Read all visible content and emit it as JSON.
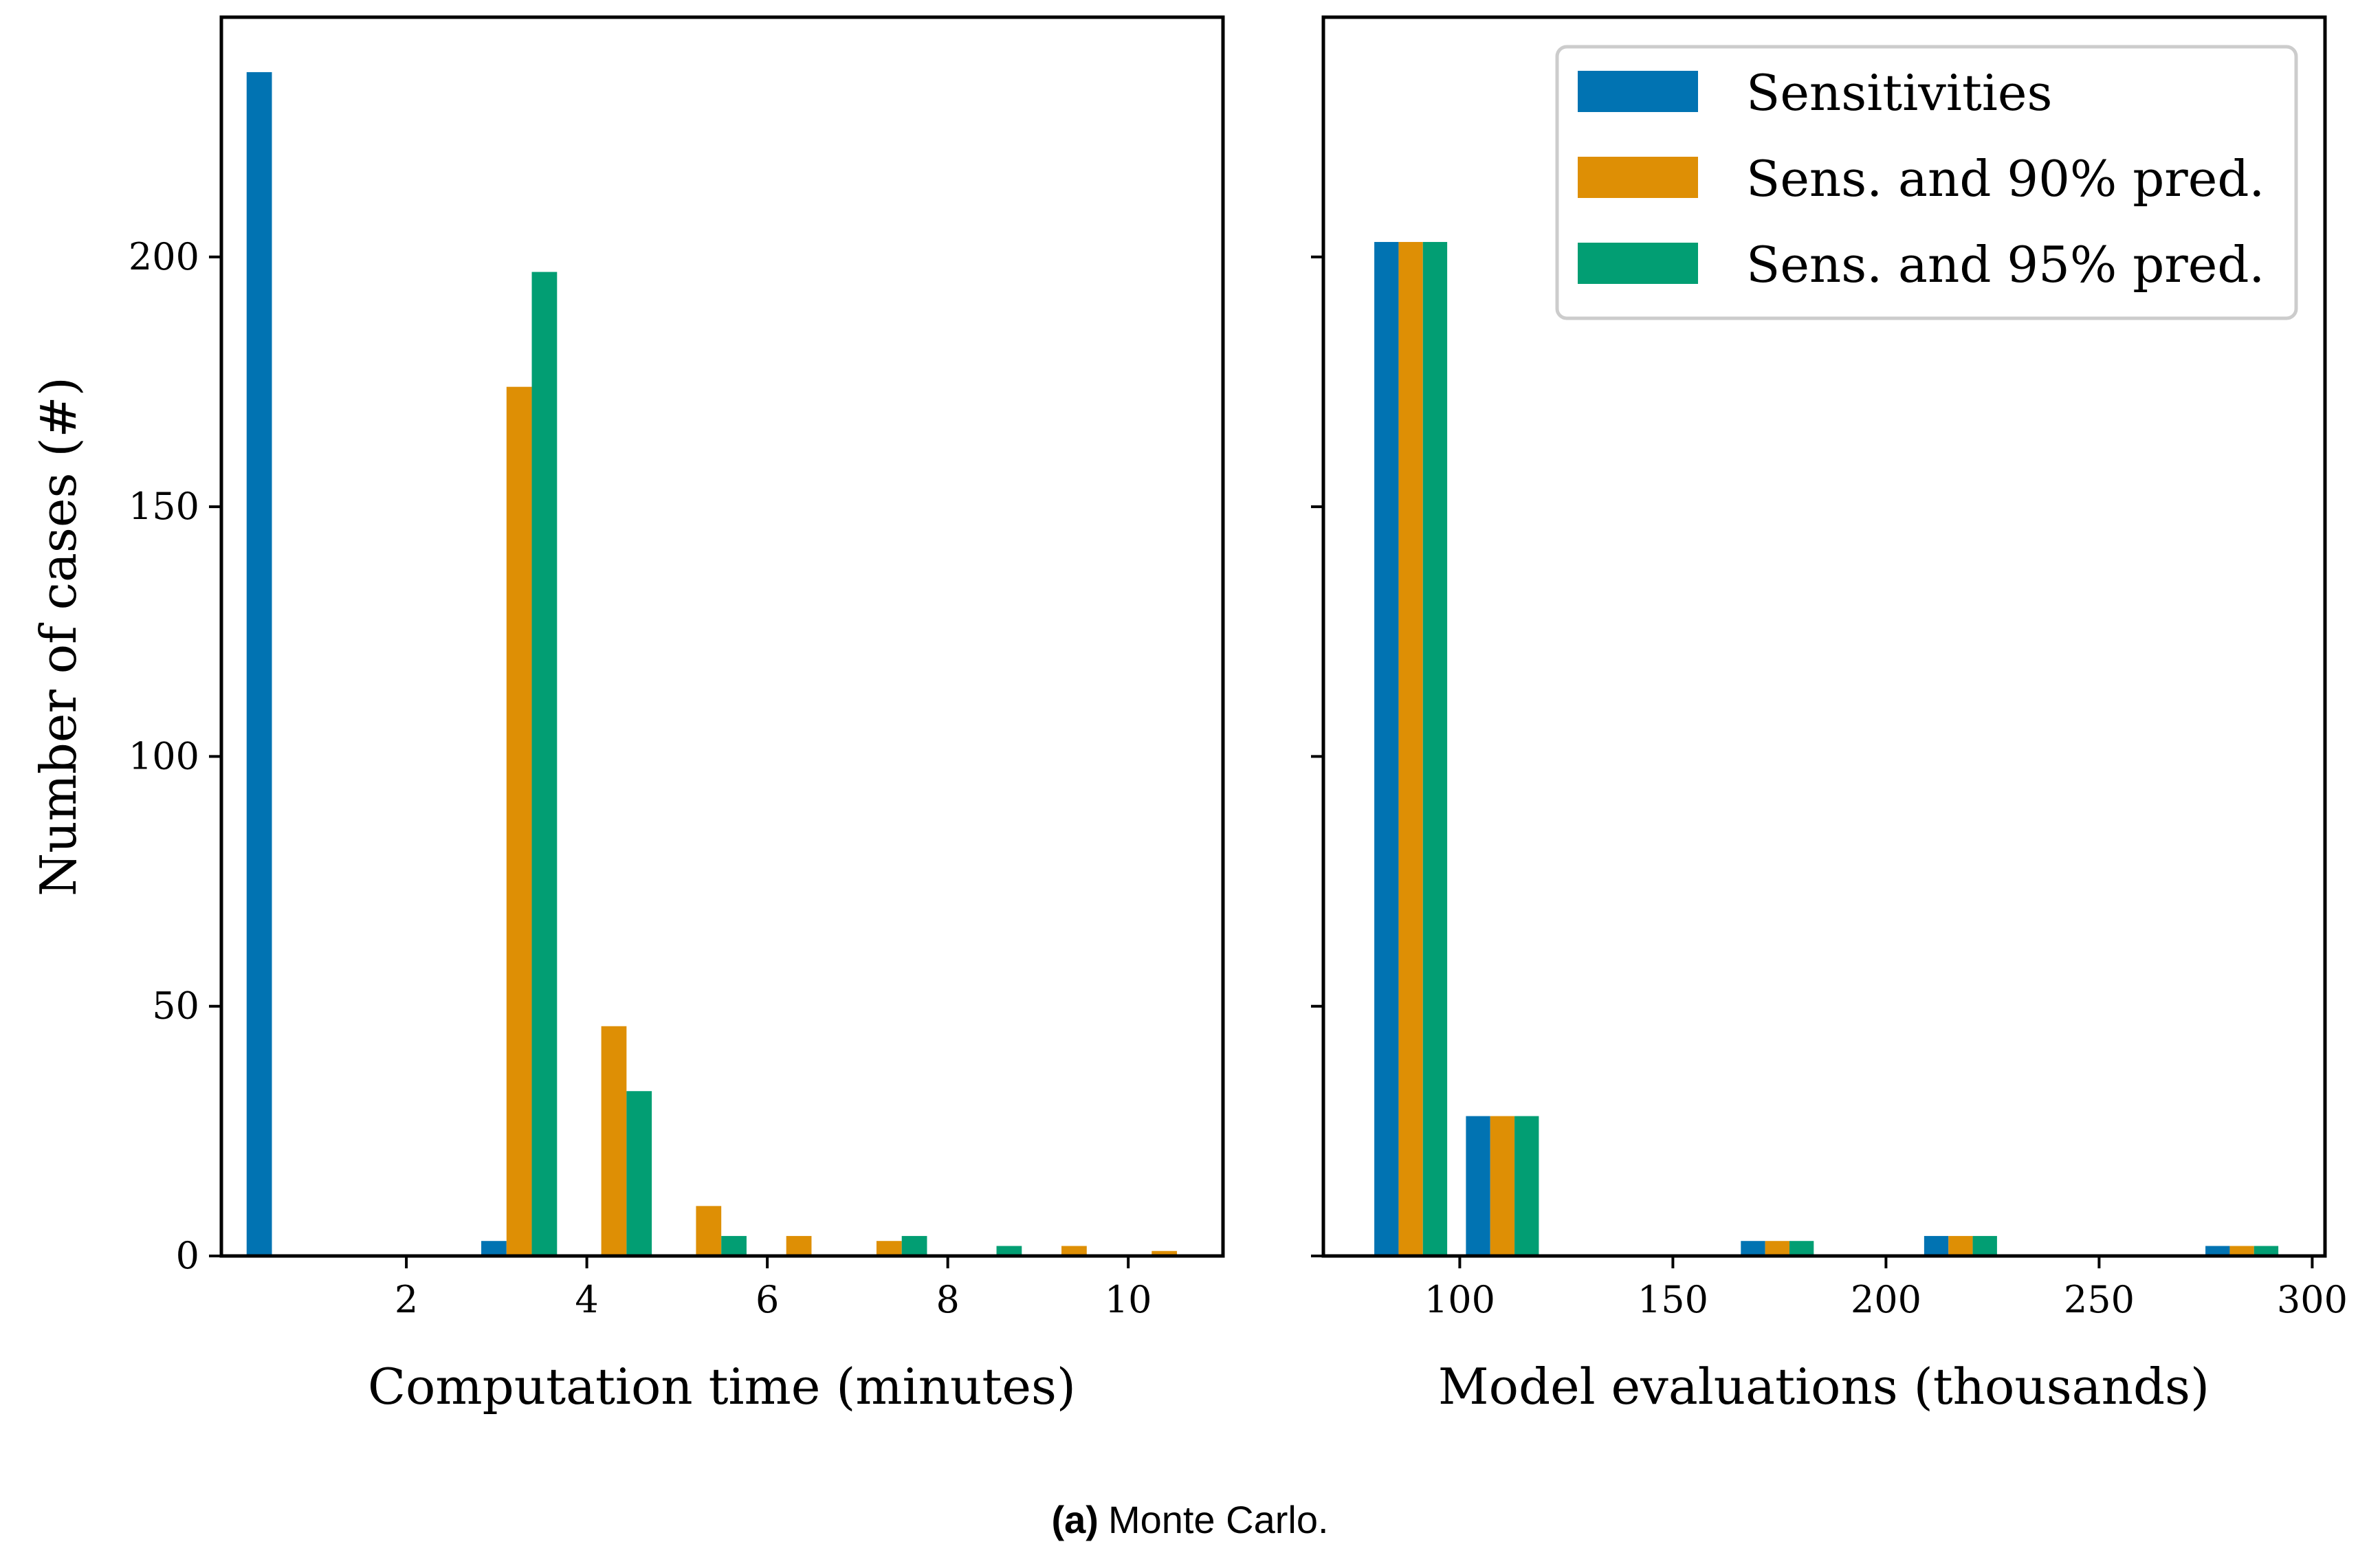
{
  "colors": {
    "series1": "#0173b2",
    "series2": "#de8f05",
    "series3": "#029e73"
  },
  "caption": {
    "label": "(a)",
    "text": "Monte Carlo."
  },
  "chart_data": [
    {
      "type": "bar",
      "xlabel": "Computation time (minutes)",
      "ylabel": "Number of cases (#)",
      "xlim": [
        -0.05,
        11.05
      ],
      "ylim": [
        0,
        248
      ],
      "xticks": [
        2,
        4,
        6,
        8,
        10
      ],
      "xtick_labels": [
        "2",
        "4",
        "6",
        "8",
        "10"
      ],
      "yticks": [
        0,
        50,
        100,
        150,
        200
      ],
      "ytick_labels": [
        "0",
        "50",
        "100",
        "150",
        "200"
      ],
      "bar_width": 0.28,
      "categories": [
        0.65,
        3.25,
        4.3,
        5.35,
        6.35,
        7.35,
        8.4,
        9.4,
        10.4
      ],
      "series": [
        {
          "name": "Sensitivities",
          "values": [
            237,
            3,
            0,
            0,
            0,
            0,
            0,
            0,
            0
          ]
        },
        {
          "name": "Sens. and 90% pred.",
          "values": [
            0,
            174,
            46,
            10,
            4,
            3,
            0,
            2,
            1
          ]
        },
        {
          "name": "Sens. and 95% pred.",
          "values": [
            0,
            197,
            33,
            4,
            0,
            4,
            2,
            0,
            0
          ]
        }
      ]
    },
    {
      "type": "bar",
      "xlabel": "Model evaluations (thousands)",
      "ylabel": "",
      "xlim": [
        68,
        303
      ],
      "ylim": [
        0,
        248
      ],
      "xticks": [
        100,
        150,
        200,
        250,
        300
      ],
      "xtick_labels": [
        "100",
        "150",
        "200",
        "250",
        "300"
      ],
      "yticks": [
        0,
        50,
        100,
        150,
        200
      ],
      "bar_width": 5.7,
      "categories": [
        88.5,
        110,
        174.5,
        217.5,
        283.5
      ],
      "series": [
        {
          "name": "Sensitivities",
          "values": [
            203,
            28,
            3,
            4,
            2
          ]
        },
        {
          "name": "Sens. and 90% pred.",
          "values": [
            203,
            28,
            3,
            4,
            2
          ]
        },
        {
          "name": "Sens. and 95% pred.",
          "values": [
            203,
            28,
            3,
            4,
            2
          ]
        }
      ],
      "legend": {
        "position": "top-right",
        "entries": [
          "Sensitivities",
          "Sens. and 90% pred.",
          "Sens. and 95% pred."
        ]
      }
    }
  ]
}
